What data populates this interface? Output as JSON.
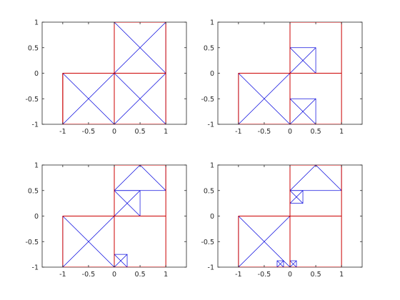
{
  "figure": {
    "background": "#ffffff"
  },
  "colors": {
    "outline": "#cc0000",
    "mesh": "#0000dd",
    "axis": "#262626"
  },
  "chart_data": [
    {
      "type": "line",
      "title": "",
      "xlabel": "",
      "ylabel": "",
      "xlim": [
        -1.4,
        1.4
      ],
      "ylim": [
        -1,
        1
      ],
      "xticks": [
        -1,
        -0.5,
        0,
        0.5,
        1
      ],
      "xtick_labels": [
        "-1",
        "-0.5",
        "0",
        "0.5",
        "1"
      ],
      "yticks": [
        -1,
        -0.5,
        0,
        0.5,
        1
      ],
      "ytick_labels": [
        "-1",
        "-0.5",
        "0",
        "0.5",
        "1"
      ],
      "grid": false,
      "refinement_level": 0,
      "mesh_cells": [
        [
          0,
          0,
          1
        ],
        [
          -1,
          -1,
          1
        ],
        [
          0,
          -1,
          1
        ]
      ],
      "outline_segments": [
        [
          -1,
          -1,
          1,
          -1
        ],
        [
          1,
          -1,
          1,
          1
        ],
        [
          1,
          1,
          0,
          1
        ],
        [
          0,
          1,
          0,
          0
        ],
        [
          0,
          0,
          -1,
          0
        ],
        [
          -1,
          0,
          -1,
          -1
        ],
        [
          0,
          0,
          1,
          0
        ],
        [
          0,
          0,
          0,
          -1
        ],
        [
          -1,
          -1,
          -1,
          0
        ],
        [
          0,
          -1,
          0,
          0
        ]
      ]
    },
    {
      "type": "line",
      "title": "",
      "xlabel": "",
      "ylabel": "",
      "xlim": [
        -1.4,
        1.4
      ],
      "ylim": [
        -1,
        1
      ],
      "xticks": [
        -1,
        -0.5,
        0,
        0.5,
        1
      ],
      "xtick_labels": [
        "-1",
        "-0.5",
        "0",
        "0.5",
        "1"
      ],
      "yticks": [
        -1,
        -0.5,
        0,
        0.5,
        1
      ],
      "ytick_labels": [
        "-1",
        "-0.5",
        "0",
        "0.5",
        "1"
      ],
      "grid": false,
      "refinement_level": 1,
      "mesh_cells": [
        [
          0,
          0,
          0.5
        ],
        [
          -1,
          -1,
          1
        ],
        [
          0,
          -1,
          0.5
        ]
      ],
      "outline_segments": [
        [
          -1,
          -1,
          1,
          -1
        ],
        [
          1,
          -1,
          1,
          1
        ],
        [
          1,
          1,
          0,
          1
        ],
        [
          0,
          1,
          0,
          0
        ],
        [
          0,
          0,
          -1,
          0
        ],
        [
          -1,
          0,
          -1,
          -1
        ],
        [
          0,
          0,
          1,
          0
        ],
        [
          0,
          0,
          0,
          -1
        ]
      ]
    },
    {
      "type": "line",
      "title": "",
      "xlabel": "",
      "ylabel": "",
      "xlim": [
        -1.4,
        1.4
      ],
      "ylim": [
        -1,
        1
      ],
      "xticks": [
        -1,
        -0.5,
        0,
        0.5,
        1
      ],
      "xtick_labels": [
        "-1",
        "-0.5",
        "0",
        "0.5",
        "1"
      ],
      "yticks": [
        -1,
        -0.5,
        0,
        0.5,
        1
      ],
      "ytick_labels": [
        "-1",
        "-0.5",
        "0",
        "0.5",
        "1"
      ],
      "grid": false,
      "refinement_level": 2,
      "mesh_cells": [
        [
          0,
          0.5,
          1
        ],
        [
          0,
          0,
          0.5
        ],
        [
          -1,
          -1,
          1
        ],
        [
          0,
          -1,
          0.25
        ]
      ],
      "outline_segments": [
        [
          -1,
          -1,
          1,
          -1
        ],
        [
          1,
          -1,
          1,
          1
        ],
        [
          1,
          1,
          0,
          1
        ],
        [
          0,
          1,
          0,
          0
        ],
        [
          0,
          0,
          -1,
          0
        ],
        [
          -1,
          0,
          -1,
          -1
        ],
        [
          0,
          0,
          1,
          0
        ],
        [
          0,
          0,
          0,
          -1
        ]
      ]
    },
    {
      "type": "line",
      "title": "",
      "xlabel": "",
      "ylabel": "",
      "xlim": [
        -1.4,
        1.4
      ],
      "ylim": [
        -1,
        1
      ],
      "xticks": [
        -1,
        -0.5,
        0,
        0.5,
        1
      ],
      "xtick_labels": [
        "-1",
        "-0.5",
        "0",
        "0.5",
        "1"
      ],
      "yticks": [
        -1,
        -0.5,
        0,
        0.5,
        1
      ],
      "ytick_labels": [
        "-1",
        "-0.5",
        "0",
        "0.5",
        "1"
      ],
      "grid": false,
      "refinement_level": 3,
      "mesh_cells": [
        [
          0,
          0.5,
          1
        ],
        [
          0,
          0.25,
          0.25
        ],
        [
          -1,
          -1,
          1
        ],
        [
          -0.25,
          -1,
          0.125
        ],
        [
          0,
          -1,
          0.125
        ]
      ],
      "outline_segments": [
        [
          -1,
          -1,
          1,
          -1
        ],
        [
          1,
          -1,
          1,
          1
        ],
        [
          1,
          1,
          0,
          1
        ],
        [
          0,
          1,
          0,
          0
        ],
        [
          0,
          0,
          -1,
          0
        ],
        [
          -1,
          0,
          -1,
          -1
        ],
        [
          0,
          0,
          1,
          0
        ],
        [
          0,
          0,
          0,
          -1
        ]
      ]
    }
  ]
}
